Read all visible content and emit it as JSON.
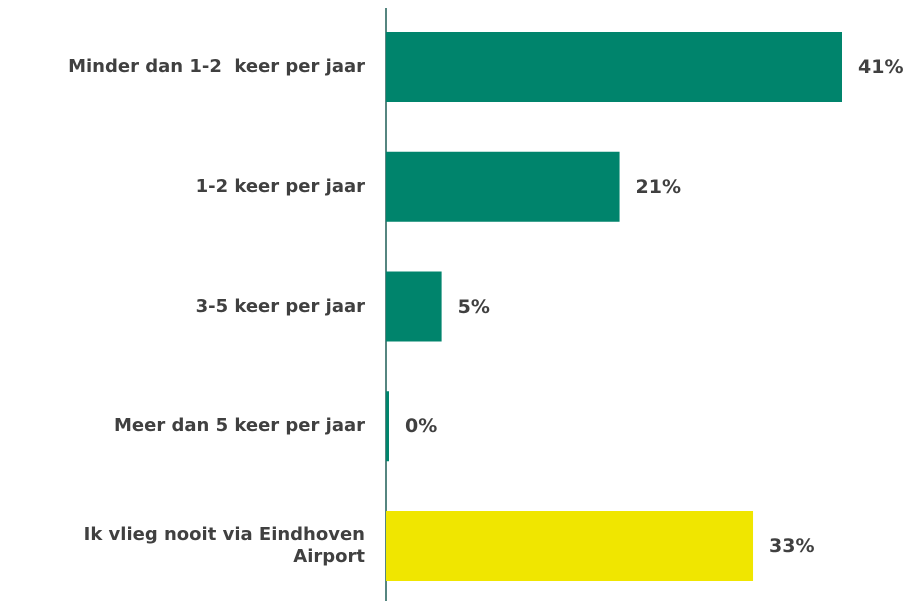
{
  "chart_data": {
    "type": "barh",
    "categories": [
      "Minder dan 1-2  keer per jaar",
      "1-2 keer per jaar",
      "3-5 keer per jaar",
      "Meer dan 5 keer per jaar",
      "Ik vlieg nooit via Eindhoven Airport"
    ],
    "values": [
      41,
      21,
      5,
      0,
      33
    ],
    "value_labels": [
      "41%",
      "21%",
      "5%",
      "0%",
      "33%"
    ],
    "colors": [
      "#00846c",
      "#00846c",
      "#00846c",
      "#00846c",
      "#f0e600"
    ]
  }
}
